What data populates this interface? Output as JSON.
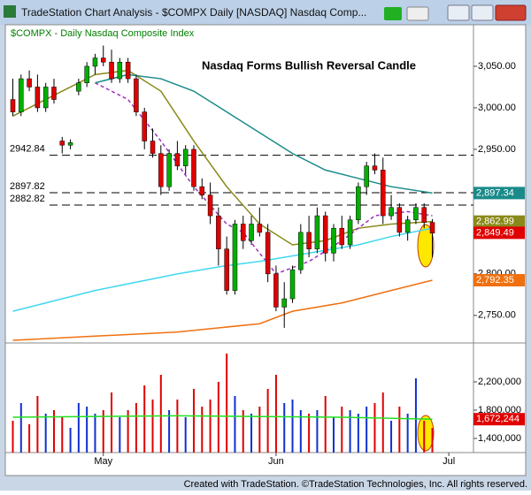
{
  "window": {
    "title": "TradeStation Chart Analysis - $COMPX Daily [NASDAQ] Nasdaq Comp...",
    "footer": "Created with TradeStation. ©TradeStation Technologies, Inc. All rights reserved."
  },
  "chart_data": [
    {
      "type": "candlestick",
      "subtitle": "$COMPX - Daily  Nasdaq Composite Index",
      "title": "Nasdaq Forms Bullish Reversal Candle",
      "categories": [
        null,
        null,
        null,
        null,
        null,
        null,
        null,
        null,
        null,
        null,
        null,
        null,
        null,
        null,
        null,
        null,
        null,
        null,
        null,
        null,
        null,
        null,
        null,
        null,
        null,
        null,
        null,
        null,
        null,
        null,
        null,
        null,
        null,
        null,
        null,
        null,
        null,
        null,
        null,
        null,
        null,
        null,
        null,
        null,
        null,
        null,
        null,
        null,
        null,
        null,
        null,
        null
      ],
      "open": [
        3010,
        2995,
        3035,
        3025,
        3000,
        3025,
        2960,
        2955,
        3020,
        3030,
        3050,
        3060,
        3055,
        3035,
        3055,
        3035,
        2995,
        2960,
        2945,
        2905,
        2945,
        2930,
        2950,
        2905,
        2895,
        2870,
        2830,
        2780,
        2860,
        2840,
        2860,
        2850,
        2800,
        2760,
        2770,
        2805,
        2850,
        2830,
        2870,
        2825,
        2855,
        2835,
        2865,
        2905,
        2930,
        2925,
        2870,
        2880,
        2850,
        2865,
        2880,
        2862
      ],
      "high": [
        3035,
        3040,
        3045,
        3040,
        3030,
        3035,
        2965,
        2962,
        3035,
        3055,
        3065,
        3075,
        3070,
        3060,
        3060,
        3040,
        3000,
        2975,
        2955,
        2950,
        2960,
        2955,
        2955,
        2915,
        2910,
        2880,
        2845,
        2865,
        2870,
        2870,
        2880,
        2860,
        2810,
        2790,
        2810,
        2860,
        2870,
        2880,
        2875,
        2860,
        2870,
        2870,
        2910,
        2935,
        2945,
        2940,
        2895,
        2885,
        2870,
        2885,
        2885,
        2866
      ],
      "low": [
        2990,
        2990,
        3020,
        2995,
        2995,
        3005,
        2945,
        2950,
        3015,
        3025,
        3040,
        3050,
        3030,
        3030,
        3030,
        2990,
        2950,
        2940,
        2895,
        2900,
        2925,
        2920,
        2900,
        2890,
        2860,
        2810,
        2775,
        2775,
        2830,
        2835,
        2845,
        2790,
        2755,
        2735,
        2765,
        2800,
        2820,
        2825,
        2815,
        2815,
        2830,
        2830,
        2860,
        2895,
        2920,
        2860,
        2865,
        2845,
        2840,
        2860,
        2855,
        2820
      ],
      "close": [
        2995,
        3035,
        3025,
        3000,
        3025,
        3010,
        2955,
        2958,
        3030,
        3050,
        3060,
        3055,
        3035,
        3055,
        3035,
        2995,
        2960,
        2945,
        2905,
        2945,
        2930,
        2950,
        2905,
        2895,
        2870,
        2830,
        2780,
        2860,
        2840,
        2860,
        2850,
        2800,
        2760,
        2770,
        2805,
        2850,
        2830,
        2870,
        2825,
        2855,
        2835,
        2865,
        2905,
        2930,
        2925,
        2870,
        2880,
        2850,
        2865,
        2880,
        2862,
        2849
      ],
      "up_color": "#00b000",
      "down_color": "#e00000",
      "xlim": [
        -0.7,
        56
      ],
      "xticks": [
        {
          "value": 11,
          "label": "May"
        },
        {
          "value": 32,
          "label": "Jun"
        },
        {
          "value": 53,
          "label": "Jul"
        }
      ],
      "ylim": [
        2720,
        3100
      ],
      "yticks": [
        {
          "value": 3050,
          "label": "3,050.00"
        },
        {
          "value": 3000,
          "label": "3,000.00"
        },
        {
          "value": 2950,
          "label": "2,950.00"
        },
        {
          "value": 2800,
          "label": "2,800.00"
        },
        {
          "value": 2750,
          "label": "2,750.00"
        }
      ],
      "levels": [
        {
          "value": 2942.84,
          "label": "2942.84"
        },
        {
          "value": 2897.82,
          "label": "2897.82"
        },
        {
          "value": 2882.82,
          "label": "2882.82"
        }
      ],
      "lines": [
        {
          "color": "#8a8a1a",
          "dash": false,
          "x": [
            0,
            5,
            10,
            14,
            18,
            22,
            26,
            30,
            34,
            38,
            42,
            46,
            51
          ],
          "values": [
            2990,
            3015,
            3040,
            3045,
            3020,
            2960,
            2905,
            2860,
            2835,
            2840,
            2855,
            2860,
            2863
          ]
        },
        {
          "color": "#a030c0",
          "dash": true,
          "x": [
            10,
            14,
            18,
            22,
            26,
            28,
            32,
            36,
            40,
            44,
            48,
            51
          ],
          "values": [
            3030,
            3010,
            2960,
            2905,
            2860,
            2850,
            2800,
            2815,
            2840,
            2870,
            2875,
            2870
          ]
        },
        {
          "color": "#1a8a8a",
          "dash": false,
          "x": [
            10,
            14,
            18,
            22,
            26,
            30,
            34,
            38,
            42,
            46,
            51
          ],
          "values": [
            3030,
            3040,
            3035,
            3020,
            2995,
            2970,
            2945,
            2925,
            2915,
            2905,
            2897.34
          ]
        },
        {
          "color": "#40d8f0",
          "dash": false,
          "x": [
            0,
            10,
            20,
            26,
            30,
            36,
            42,
            46,
            51
          ],
          "values": [
            2755,
            2780,
            2800,
            2810,
            2815,
            2825,
            2835,
            2845,
            2855
          ]
        },
        {
          "color": "#f07010",
          "dash": false,
          "x": [
            0,
            10,
            20,
            30,
            34,
            40,
            46,
            51
          ],
          "values": [
            2720,
            2725,
            2730,
            2740,
            2755,
            2765,
            2780,
            2792.35
          ]
        }
      ],
      "last_labels": [
        {
          "value": 2897.34,
          "label": "2,897.34",
          "color": "#1a8a8a"
        },
        {
          "value": 2862.99,
          "label": "2,862.99",
          "color": "#8a8a1a"
        },
        {
          "value": 2849.49,
          "label": "2,849.49",
          "color": "#e00000"
        },
        {
          "value": 2792.35,
          "label": "2,792.35",
          "color": "#f07010"
        }
      ]
    },
    {
      "type": "bar",
      "values": [
        1650000,
        1900000,
        1600000,
        2000000,
        1750000,
        1800000,
        1700000,
        1550000,
        1900000,
        1850000,
        1750000,
        1800000,
        2050000,
        1700000,
        1800000,
        1900000,
        2150000,
        1950000,
        2300000,
        1800000,
        1950000,
        1700000,
        2100000,
        1850000,
        1950000,
        2200000,
        2600000,
        2000000,
        1800000,
        1750000,
        1850000,
        2100000,
        2300000,
        1900000,
        1950000,
        1800000,
        1750000,
        1800000,
        2000000,
        1700000,
        1850000,
        1800000,
        1750000,
        1850000,
        1900000,
        2050000,
        1650000,
        1850000,
        1750000,
        2250000,
        1650000,
        1550000
      ],
      "up_color": "#1030d0",
      "down_color": "#e00000",
      "ylim": [
        1200000,
        2700000
      ],
      "yticks": [
        {
          "value": 2200000,
          "label": "2,200,000"
        },
        {
          "value": 1800000,
          "label": "1,800,000"
        },
        {
          "value": 1400000,
          "label": "1,400,000"
        }
      ],
      "lines": [
        {
          "color": "#20e020",
          "dash": false,
          "x": [
            0,
            20,
            40,
            51
          ],
          "values": [
            1700000,
            1720000,
            1700000,
            1672244
          ]
        }
      ],
      "last_labels": [
        {
          "value": 1672244,
          "label": "1,672,244",
          "color": "#e00000"
        }
      ]
    }
  ]
}
